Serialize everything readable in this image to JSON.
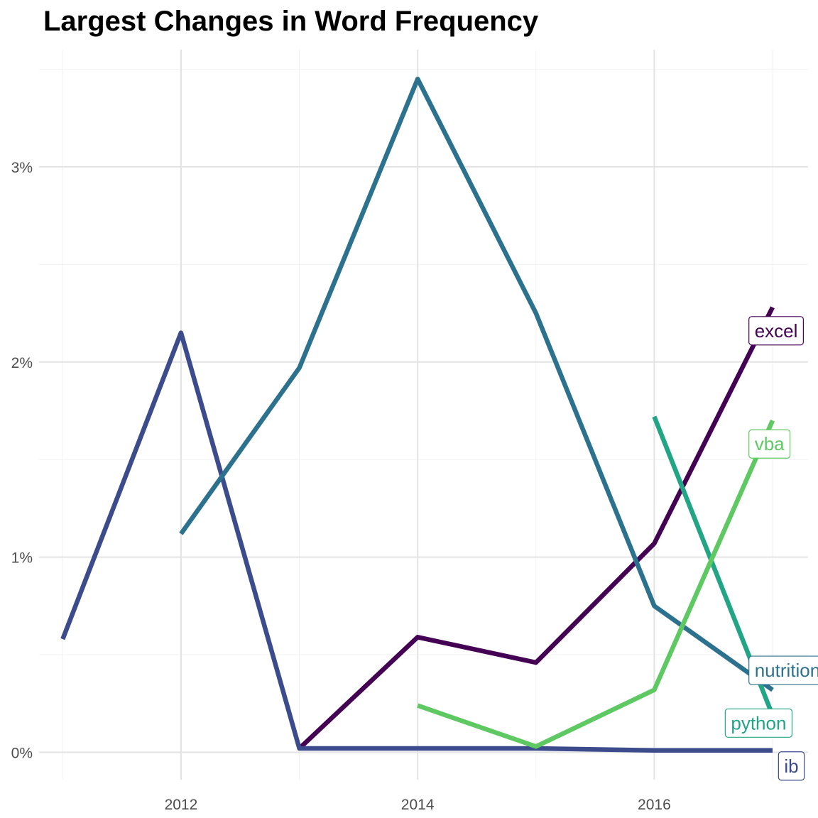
{
  "chart_data": {
    "type": "line",
    "title": "Largest Changes in Word Frequency",
    "xlabel": "",
    "ylabel": "",
    "xlim": [
      2010.8,
      2017.3
    ],
    "ylim": [
      -0.14,
      3.6
    ],
    "x_ticks": [
      2012,
      2014,
      2016
    ],
    "x_tick_labels": [
      "2012",
      "2014",
      "2016"
    ],
    "y_ticks": [
      0,
      1,
      2,
      3
    ],
    "y_tick_labels": [
      "0%",
      "1%",
      "2%",
      "3%"
    ],
    "grid": true,
    "legend": "none (direct labels at line ends)",
    "series": [
      {
        "name": "excel",
        "color": "#440154",
        "label_pos": [
          2016.8,
          2.16
        ],
        "points": [
          [
            2013,
            0.02
          ],
          [
            2014,
            0.59
          ],
          [
            2015,
            0.46
          ],
          [
            2016,
            1.07
          ],
          [
            2017,
            2.28
          ]
        ]
      },
      {
        "name": "ib",
        "color": "#3B4B8B",
        "label_pos": [
          2017.05,
          -0.07
        ],
        "points": [
          [
            2011,
            0.58
          ],
          [
            2012,
            2.15
          ],
          [
            2013,
            0.02
          ],
          [
            2014,
            0.02
          ],
          [
            2015,
            0.02
          ],
          [
            2016,
            0.01
          ],
          [
            2017,
            0.01
          ]
        ]
      },
      {
        "name": "nutrition",
        "color": "#2C718E",
        "label_pos": [
          2016.8,
          0.42
        ],
        "points": [
          [
            2012,
            1.12
          ],
          [
            2013,
            1.97
          ],
          [
            2014,
            3.45
          ],
          [
            2015,
            2.25
          ],
          [
            2016,
            0.75
          ],
          [
            2017,
            0.32
          ]
        ]
      },
      {
        "name": "python",
        "color": "#21A585",
        "label_pos": [
          2016.6,
          0.15
        ],
        "points": [
          [
            2016,
            1.72
          ],
          [
            2017,
            0.19
          ]
        ]
      },
      {
        "name": "vba",
        "color": "#5EC962",
        "label_pos": [
          2016.8,
          1.58
        ],
        "points": [
          [
            2014,
            0.24
          ],
          [
            2015,
            0.03
          ],
          [
            2016,
            0.32
          ],
          [
            2017,
            1.7
          ]
        ]
      }
    ]
  }
}
